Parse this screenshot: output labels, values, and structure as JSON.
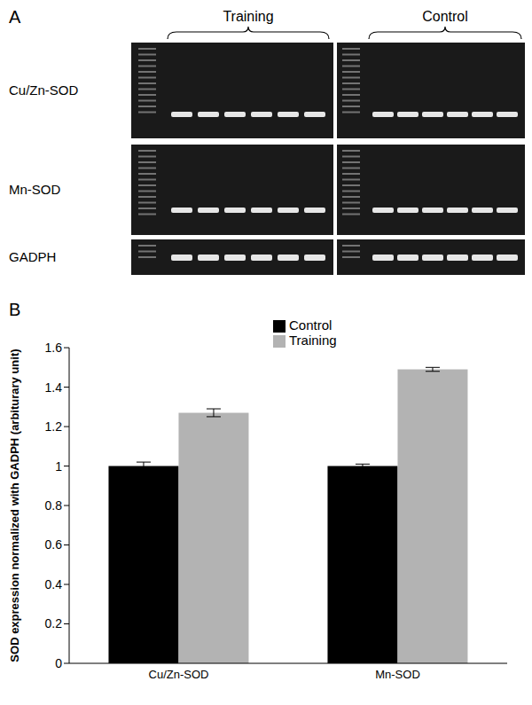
{
  "panels": [
    "A",
    "B"
  ],
  "gel": {
    "groups": [
      "Training",
      "Control"
    ],
    "rows": [
      "Cu/Zn-SOD",
      "Mn-SOD",
      "GADPH"
    ]
  },
  "chart_data": {
    "type": "bar",
    "categories": [
      "Cu/Zn-SOD",
      "Mn-SOD"
    ],
    "series": [
      {
        "name": "Control",
        "color": "#000000",
        "values": [
          1.0,
          1.0
        ],
        "errors": [
          0.02,
          0.01
        ]
      },
      {
        "name": "Training",
        "color": "#b3b3b3",
        "values": [
          1.27,
          1.49
        ],
        "errors": [
          0.02,
          0.01
        ]
      }
    ],
    "y_label": "SOD expression normalized with GADPH (arbiturary unit)",
    "ylim": [
      0,
      1.6
    ],
    "yticks": [
      0,
      0.2,
      0.4,
      0.6,
      0.8,
      1,
      1.2,
      1.4,
      1.6
    ],
    "legend": "upper center",
    "grid": false
  }
}
